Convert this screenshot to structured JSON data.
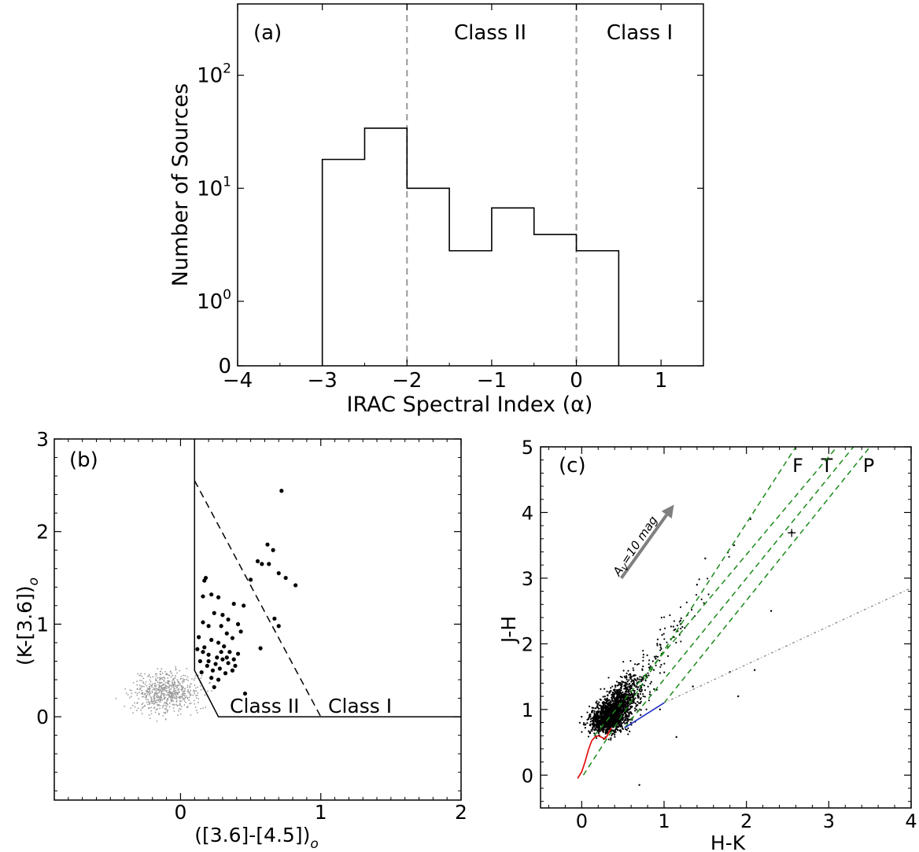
{
  "chart_data": [
    {
      "panel": "(a)",
      "type": "histogram",
      "xlabel": "IRAC Spectral Index (α)",
      "ylabel": "Number of Sources",
      "yscale": "log",
      "xlim": [
        -4,
        1.5
      ],
      "x_ticks": [
        -4,
        -3,
        -2,
        -1,
        0,
        1
      ],
      "y_ticks": [
        {
          "value": 0,
          "label": "0"
        },
        {
          "value": 1,
          "label": "10",
          "exp": "0"
        },
        {
          "value": 10,
          "label": "10",
          "exp": "1"
        },
        {
          "value": 100,
          "label": "10",
          "exp": "2"
        }
      ],
      "bin_edges": [
        -3.0,
        -2.5,
        -2.0,
        -1.5,
        -1.0,
        -0.5,
        0.0,
        0.5
      ],
      "counts": [
        18,
        34,
        10,
        2.8,
        6.7,
        3.9,
        2.8
      ],
      "class_boundaries": [
        -2,
        0
      ],
      "region_labels": [
        "Class II",
        "Class I"
      ],
      "grid": false
    },
    {
      "panel": "(b)",
      "type": "scatter",
      "xlabel": "([3.6]-[4.5])",
      "xlabel_sub": "o",
      "ylabel": "(K-[3.6])",
      "ylabel_sub": "o",
      "xlim": [
        -0.9,
        2
      ],
      "ylim": [
        -0.9,
        3
      ],
      "x_ticks": [
        0,
        1,
        2
      ],
      "y_ticks": [
        0,
        1,
        2,
        3
      ],
      "region_labels": [
        "Class II",
        "Class I"
      ],
      "boundary_solid": [
        [
          0.1,
          3.0
        ],
        [
          0.1,
          0.5
        ],
        [
          0.27,
          0.0
        ],
        [
          2.0,
          0.0
        ]
      ],
      "boundary_dashed": [
        [
          0.1,
          2.55
        ],
        [
          1.0,
          0.0
        ]
      ],
      "yso_points": [
        [
          0.72,
          2.44
        ],
        [
          0.5,
          1.48
        ],
        [
          0.55,
          1.68
        ],
        [
          0.62,
          1.86
        ],
        [
          0.66,
          1.8
        ],
        [
          0.58,
          1.65
        ],
        [
          0.63,
          1.65
        ],
        [
          0.7,
          1.55
        ],
        [
          0.75,
          1.5
        ],
        [
          0.82,
          1.42
        ],
        [
          0.67,
          1.06
        ],
        [
          0.7,
          0.98
        ],
        [
          0.57,
          0.74
        ],
        [
          0.45,
          1.2
        ],
        [
          0.17,
          1.47
        ],
        [
          0.18,
          1.5
        ],
        [
          0.16,
          1.3
        ],
        [
          0.22,
          1.32
        ],
        [
          0.27,
          1.29
        ],
        [
          0.24,
          1.12
        ],
        [
          0.38,
          1.22
        ],
        [
          0.34,
          1.05
        ],
        [
          0.29,
          0.98
        ],
        [
          0.16,
          1.02
        ],
        [
          0.2,
          0.98
        ],
        [
          0.3,
          1.1
        ],
        [
          0.41,
          1.0
        ],
        [
          0.43,
          0.92
        ],
        [
          0.33,
          0.9
        ],
        [
          0.37,
          0.85
        ],
        [
          0.13,
          0.86
        ],
        [
          0.22,
          0.83
        ],
        [
          0.27,
          0.8
        ],
        [
          0.31,
          0.76
        ],
        [
          0.35,
          0.7
        ],
        [
          0.12,
          0.73
        ],
        [
          0.16,
          0.7
        ],
        [
          0.2,
          0.67
        ],
        [
          0.26,
          0.64
        ],
        [
          0.3,
          0.62
        ],
        [
          0.34,
          0.58
        ],
        [
          0.38,
          0.62
        ],
        [
          0.14,
          0.6
        ],
        [
          0.19,
          0.55
        ],
        [
          0.23,
          0.5
        ],
        [
          0.28,
          0.52
        ],
        [
          0.32,
          0.47
        ],
        [
          0.37,
          0.5
        ],
        [
          0.22,
          0.42
        ],
        [
          0.27,
          0.4
        ],
        [
          0.24,
          0.32
        ],
        [
          0.46,
          0.25
        ],
        [
          0.17,
          0.75
        ],
        [
          0.41,
          0.68
        ],
        [
          0.29,
          0.7
        ],
        [
          0.2,
          0.6
        ],
        [
          0.33,
          0.64
        ],
        [
          0.25,
          0.57
        ],
        [
          0.15,
          0.48
        ],
        [
          0.39,
          0.55
        ]
      ],
      "field_points": {
        "count": 650,
        "x_range": [
          -0.5,
          0.25
        ],
        "y_range": [
          -0.05,
          0.9
        ],
        "center": [
          -0.1,
          0.26
        ]
      },
      "grid": false
    },
    {
      "panel": "(c)",
      "type": "scatter",
      "xlabel": "H-K",
      "ylabel": "J-H",
      "xlim": [
        -0.5,
        4
      ],
      "ylim": [
        -0.5,
        5
      ],
      "x_ticks": [
        0,
        1,
        2,
        3,
        4
      ],
      "y_ticks": [
        0,
        1,
        2,
        3,
        4,
        5
      ],
      "region_labels": [
        "F",
        "T",
        "P"
      ],
      "reddening_vector_label": "A",
      "reddening_vector_sub": "V",
      "reddening_vector_value": "=10 mag",
      "reddening_vector": [
        [
          0.48,
          3.0
        ],
        [
          1.12,
          4.12
        ]
      ],
      "ctts_locus": [
        [
          0.52,
          0.72
        ],
        [
          1.0,
          1.1
        ]
      ],
      "reddening_lines": [
        [
          [
            0.02,
            0.0
          ],
          [
            2.6,
            5.0
          ]
        ],
        [
          [
            0.15,
            0.6
          ],
          [
            3.1,
            5.0
          ]
        ],
        [
          [
            0.52,
            0.72
          ],
          [
            3.3,
            5.0
          ]
        ],
        [
          [
            1.0,
            1.1
          ],
          [
            3.5,
            5.0
          ]
        ]
      ],
      "giant_locus_dotted": [
        [
          1.0,
          1.1
        ],
        [
          4.0,
          2.85
        ]
      ],
      "outlier_points": [
        [
          2.05,
          3.9
        ],
        [
          1.85,
          3.5
        ],
        [
          2.3,
          2.5
        ],
        [
          1.5,
          3.3
        ],
        [
          1.4,
          2.9
        ],
        [
          1.2,
          2.3
        ],
        [
          1.9,
          1.2
        ],
        [
          1.15,
          0.58
        ],
        [
          0.7,
          -0.15
        ],
        [
          2.1,
          1.6
        ],
        [
          1.8,
          1.57
        ],
        [
          1.35,
          1.35
        ],
        [
          2.55,
          3.7
        ],
        [
          0.95,
          1.0
        ],
        [
          1.05,
          1.95
        ]
      ],
      "main_cloud": {
        "count": 2000,
        "center": [
          0.25,
          0.75
        ],
        "trend_slope": 1.7
      },
      "grid": false
    }
  ]
}
